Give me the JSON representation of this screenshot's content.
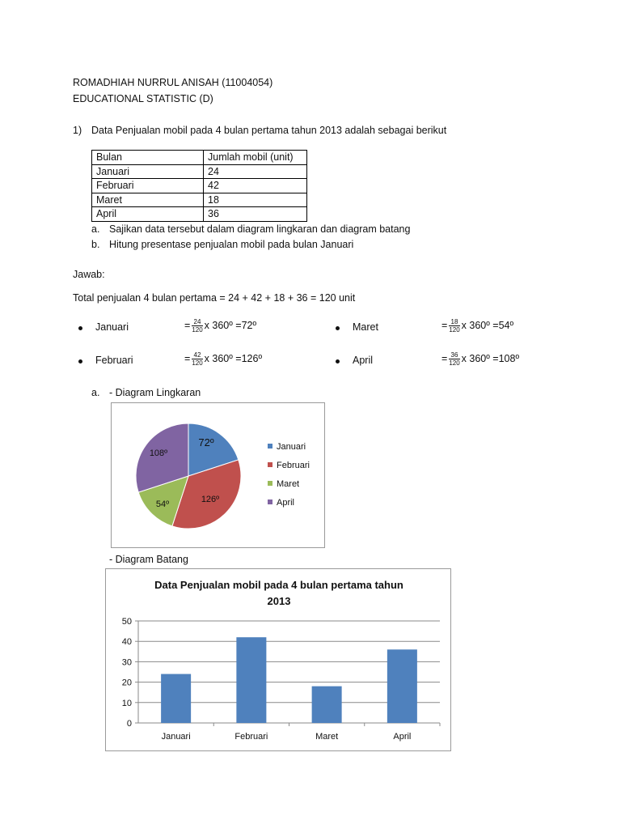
{
  "header": {
    "name": "ROMADHIAH NURRUL ANISAH (11004054)",
    "course": "EDUCATIONAL STATISTIC (D)"
  },
  "question": {
    "number": "1)",
    "text": "Data Penjualan mobil pada 4 bulan pertama tahun 2013 adalah sebagai berikut",
    "table": {
      "headers": [
        "Bulan",
        "Jumlah mobil (unit)"
      ],
      "rows": [
        [
          "Januari",
          "24"
        ],
        [
          "Februari",
          "42"
        ],
        [
          "Maret",
          "18"
        ],
        [
          "April",
          "36"
        ]
      ]
    },
    "tasks": [
      {
        "label": "a.",
        "text": "Sajikan data tersebut dalam diagram lingkaran dan diagram batang"
      },
      {
        "label": "b.",
        "text": "Hitung presentase penjualan mobil pada bulan Januari"
      }
    ]
  },
  "answer": {
    "label": "Jawab:",
    "total": "Total penjualan 4 bulan pertama = 24 + 42 + 18 + 36 = 120 unit",
    "items": [
      {
        "month": "Januari",
        "num": "24",
        "den": "120",
        "rest": "x 360º =72º"
      },
      {
        "month": "Maret",
        "num": "18",
        "den": "120",
        "rest": "x 360º =54º"
      },
      {
        "month": "Februari",
        "num": "42",
        "den": "120",
        "rest": "x 360º =126º"
      },
      {
        "month": "April",
        "num": "36",
        "den": "120",
        "rest": "x 360º =108º"
      }
    ],
    "pie_heading_label": "a.",
    "pie_heading": "- Diagram Lingkaran",
    "bar_heading": "- Diagram Batang"
  },
  "chart_data": [
    {
      "type": "pie",
      "categories": [
        "Januari",
        "Februari",
        "Maret",
        "April"
      ],
      "values": [
        72,
        126,
        54,
        108
      ],
      "labels": [
        "72º",
        "126º",
        "54º",
        "108º"
      ],
      "colors": [
        "#4f81bd",
        "#c0504d",
        "#9bbb59",
        "#8064a2"
      ],
      "legend": "right"
    },
    {
      "type": "bar",
      "title": "Data Penjualan mobil pada 4 bulan pertama tahun 2013",
      "title_lines": [
        "Data Penjualan mobil pada 4 bulan pertama tahun",
        "2013"
      ],
      "categories": [
        "Januari",
        "Februari",
        "Maret",
        "April"
      ],
      "values": [
        24,
        42,
        18,
        36
      ],
      "ylim": [
        0,
        50
      ],
      "yticks": [
        "0",
        "10",
        "20",
        "30",
        "40",
        "50"
      ],
      "grid": true,
      "color": "#4f81bd"
    }
  ]
}
